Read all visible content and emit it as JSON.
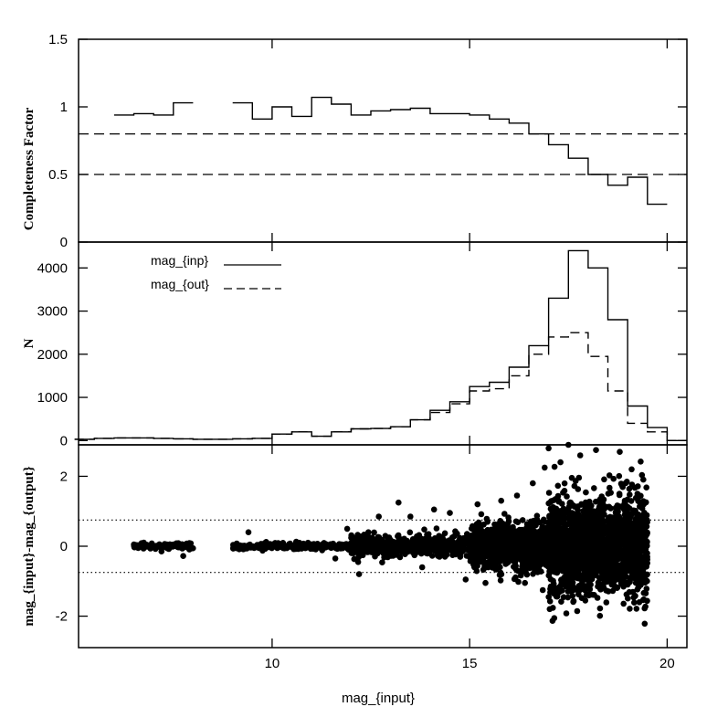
{
  "chart_data": [
    {
      "type": "line",
      "panel": "completeness",
      "ylabel": "Completeness Factor",
      "xlabel": "",
      "xlim": [
        5.1,
        20.5
      ],
      "ylim": [
        0,
        1.5
      ],
      "x_ticks": [
        10,
        15,
        20
      ],
      "y_ticks": [
        0,
        0.5,
        1,
        1.5
      ],
      "y_tick_labels": [
        "0",
        "0.5",
        "1",
        "1.5"
      ],
      "grid": false,
      "series": [
        {
          "style": "solid-step",
          "bin_width": 0.5,
          "x": [
            6.0,
            6.5,
            7.0,
            7.5,
            9.0,
            9.5,
            10.0,
            10.5,
            11.0,
            11.5,
            12.0,
            12.5,
            13.0,
            13.5,
            14.0,
            14.5,
            15.0,
            15.5,
            16.0,
            16.5,
            17.0,
            17.5,
            18.0,
            18.5,
            19.0,
            19.5
          ],
          "values": [
            0.94,
            0.95,
            0.94,
            1.03,
            1.03,
            0.91,
            1.0,
            0.93,
            1.07,
            1.02,
            0.94,
            0.97,
            0.98,
            0.99,
            0.95,
            0.95,
            0.94,
            0.91,
            0.88,
            0.8,
            0.72,
            0.62,
            0.5,
            0.42,
            0.48,
            0.28
          ]
        }
      ],
      "reference_lines": [
        {
          "y": 0.8,
          "style": "dashed"
        },
        {
          "y": 0.5,
          "style": "dashed"
        }
      ]
    },
    {
      "type": "line",
      "panel": "histogram",
      "ylabel": "N",
      "xlabel": "",
      "xlim": [
        5.1,
        20.5
      ],
      "ylim": [
        -100,
        4600
      ],
      "x_ticks": [
        10,
        15,
        20
      ],
      "y_ticks": [
        0,
        1000,
        2000,
        3000,
        4000
      ],
      "y_tick_labels": [
        "0",
        "1000",
        "2000",
        "3000",
        "4000"
      ],
      "grid": false,
      "legend": {
        "location": "top-left",
        "entries": [
          "mag_{inp}",
          "mag_{out}"
        ]
      },
      "series": [
        {
          "name": "mag_{inp}",
          "style": "solid-step",
          "bin_width": 0.5,
          "x": [
            5.0,
            5.5,
            6.0,
            6.5,
            7.0,
            7.5,
            8.0,
            8.5,
            9.0,
            9.5,
            10.0,
            10.5,
            11.0,
            11.5,
            12.0,
            12.5,
            13.0,
            13.5,
            14.0,
            14.5,
            15.0,
            15.5,
            16.0,
            16.5,
            17.0,
            17.5,
            18.0,
            18.5,
            19.0,
            19.5,
            20.0
          ],
          "values": [
            30,
            50,
            60,
            60,
            50,
            40,
            30,
            30,
            40,
            50,
            150,
            200,
            100,
            200,
            270,
            280,
            320,
            480,
            700,
            900,
            1250,
            1350,
            1700,
            2200,
            3300,
            4400,
            4000,
            2800,
            800,
            300,
            0
          ]
        },
        {
          "name": "mag_{out}",
          "style": "dashed-step",
          "bin_width": 0.5,
          "x": [
            5.0,
            5.5,
            6.0,
            6.5,
            7.0,
            7.5,
            8.0,
            8.5,
            9.0,
            9.5,
            10.0,
            10.5,
            11.0,
            11.5,
            12.0,
            12.5,
            13.0,
            13.5,
            14.0,
            14.5,
            15.0,
            15.5,
            16.0,
            16.5,
            17.0,
            17.5,
            18.0,
            18.5,
            19.0,
            19.5,
            20.0
          ],
          "values": [
            30,
            50,
            60,
            60,
            50,
            40,
            30,
            30,
            40,
            50,
            150,
            200,
            100,
            200,
            270,
            280,
            320,
            480,
            650,
            850,
            1150,
            1200,
            1500,
            2000,
            2400,
            2500,
            1950,
            1150,
            400,
            200,
            0
          ]
        }
      ]
    },
    {
      "type": "scatter",
      "panel": "residuals",
      "ylabel": "mag_{input}-mag_{output}",
      "xlabel": "mag_{input}",
      "xlim": [
        5.1,
        20.5
      ],
      "ylim": [
        -2.9,
        2.9
      ],
      "x_ticks": [
        10,
        15,
        20
      ],
      "x_tick_labels": [
        "10",
        "15",
        "20"
      ],
      "y_ticks": [
        -2,
        0,
        2
      ],
      "y_tick_labels": [
        "-2",
        "0",
        "2"
      ],
      "grid": false,
      "reference_lines": [
        {
          "y": 0.75,
          "style": "dotted"
        },
        {
          "y": -0.75,
          "style": "dotted"
        }
      ],
      "point_groups": [
        {
          "x_range": [
            6.5,
            8.0
          ],
          "y_center": 0.0,
          "y_spread": 0.04,
          "count": 120
        },
        {
          "x_range": [
            9.0,
            12.0
          ],
          "y_center": 0.0,
          "y_spread": 0.05,
          "count": 250
        },
        {
          "x_range": [
            12.0,
            15.0
          ],
          "y_center": 0.0,
          "y_spread": 0.15,
          "count": 450
        },
        {
          "x_range": [
            15.0,
            17.0
          ],
          "y_center": 0.0,
          "y_spread": 0.35,
          "count": 800
        },
        {
          "x_range": [
            17.0,
            19.5
          ],
          "y_center": 0.0,
          "y_spread": 0.7,
          "count": 1800
        }
      ],
      "outliers": [
        [
          7.75,
          -0.28
        ],
        [
          7.2,
          -0.15
        ],
        [
          9.4,
          0.4
        ],
        [
          11.9,
          0.5
        ],
        [
          12.7,
          0.85
        ],
        [
          13.2,
          1.25
        ],
        [
          13.5,
          0.85
        ],
        [
          14.1,
          1.05
        ],
        [
          14.5,
          0.95
        ],
        [
          15.2,
          1.2
        ],
        [
          15.8,
          1.3
        ],
        [
          16.2,
          1.45
        ],
        [
          16.6,
          1.8
        ],
        [
          16.9,
          2.25
        ],
        [
          17.3,
          2.4
        ],
        [
          17.8,
          2.6
        ],
        [
          18.2,
          2.75
        ],
        [
          18.8,
          2.7
        ],
        [
          19.1,
          2.2
        ],
        [
          17.0,
          2.8
        ],
        [
          17.5,
          2.9
        ],
        [
          12.2,
          -0.8
        ],
        [
          14.9,
          -0.95
        ],
        [
          16.4,
          -1.05
        ],
        [
          17.2,
          -1.3
        ],
        [
          18.0,
          -1.2
        ],
        [
          18.6,
          -1.1
        ],
        [
          19.2,
          -0.75
        ],
        [
          13.8,
          -0.6
        ],
        [
          11.6,
          -0.35
        ]
      ]
    }
  ]
}
